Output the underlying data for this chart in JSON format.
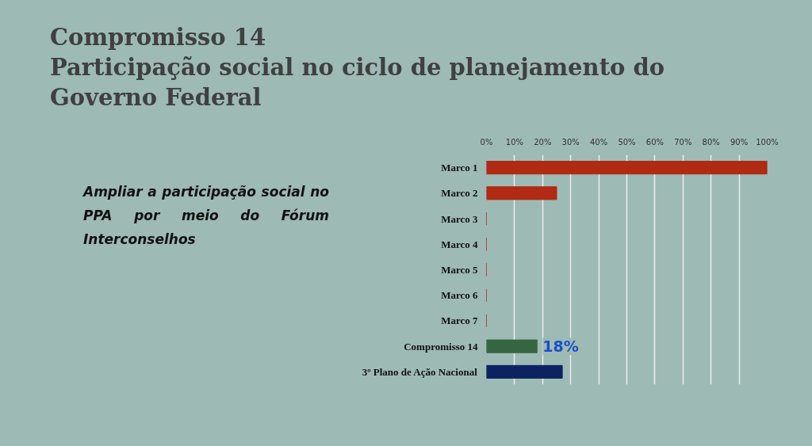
{
  "chart_data": {
    "type": "bar",
    "orientation": "horizontal",
    "title": "Compromisso 14",
    "subtitle": "Participação social no ciclo de planejamento do Governo Federal",
    "annotations": [
      "Ampliar a participação social no PPA por meio do Fórum Interconselhos"
    ],
    "categories": [
      "Marco 1",
      "Marco 2",
      "Marco 3",
      "Marco 4",
      "Marco 5",
      "Marco 6",
      "Marco 7",
      "Compromisso 14",
      "3º Plano de Ação Nacional"
    ],
    "values": [
      100,
      25,
      0,
      0,
      0,
      0,
      0,
      18,
      27
    ],
    "colors": [
      "#b02a14",
      "#b02a14",
      "#b02a14",
      "#b02a14",
      "#b02a14",
      "#b02a14",
      "#b02a14",
      "#356640",
      "#0d2260"
    ],
    "value_labels": [
      null,
      null,
      null,
      null,
      null,
      null,
      null,
      "18%",
      null
    ],
    "xlim": [
      0,
      100
    ],
    "xticks": [
      {
        "value": 0,
        "label": "0%"
      },
      {
        "value": 10,
        "label": "10%"
      },
      {
        "value": 20,
        "label": "20%"
      },
      {
        "value": 30,
        "label": "30%"
      },
      {
        "value": 40,
        "label": "40%"
      },
      {
        "value": 50,
        "label": "50%"
      },
      {
        "value": 60,
        "label": "60%"
      },
      {
        "value": 70,
        "label": "70%"
      },
      {
        "value": 80,
        "label": "80%"
      },
      {
        "value": 90,
        "label": "90%"
      },
      {
        "value": 100,
        "label": "100%"
      }
    ],
    "grid": "x"
  }
}
